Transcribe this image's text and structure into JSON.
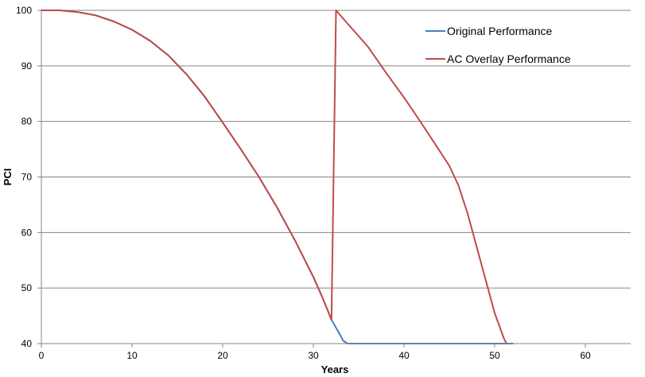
{
  "chart_data": {
    "type": "line",
    "title": "",
    "xlabel": "Years",
    "ylabel": "PCI",
    "xlim": [
      0,
      65
    ],
    "ylim": [
      40,
      100
    ],
    "x_ticks": [
      0,
      10,
      20,
      30,
      40,
      50,
      60
    ],
    "y_ticks": [
      40,
      50,
      60,
      70,
      80,
      90,
      100
    ],
    "grid": {
      "horizontal": true,
      "vertical": false
    },
    "legend": {
      "position": "top-right"
    },
    "series": [
      {
        "name": "Original Performance",
        "color": "#4a7ebb",
        "points": [
          [
            0,
            100
          ],
          [
            2,
            100
          ],
          [
            4,
            99.7
          ],
          [
            6,
            99.1
          ],
          [
            8,
            98.0
          ],
          [
            10,
            96.5
          ],
          [
            12,
            94.5
          ],
          [
            14,
            91.9
          ],
          [
            16,
            88.5
          ],
          [
            18,
            84.5
          ],
          [
            20,
            79.8
          ],
          [
            22,
            75.0
          ],
          [
            24,
            70.0
          ],
          [
            26,
            64.5
          ],
          [
            28,
            58.5
          ],
          [
            30,
            52.0
          ],
          [
            31,
            48.3
          ],
          [
            32,
            44.3
          ],
          [
            32.8,
            42.0
          ],
          [
            33.3,
            40.5
          ],
          [
            33.8,
            40
          ],
          [
            40,
            40
          ],
          [
            50,
            40
          ],
          [
            52,
            40
          ]
        ]
      },
      {
        "name": "AC Overlay Performance",
        "color": "#be4b48",
        "points": [
          [
            0,
            100
          ],
          [
            2,
            100
          ],
          [
            4,
            99.7
          ],
          [
            6,
            99.1
          ],
          [
            8,
            98.0
          ],
          [
            10,
            96.5
          ],
          [
            12,
            94.5
          ],
          [
            14,
            91.9
          ],
          [
            16,
            88.5
          ],
          [
            18,
            84.5
          ],
          [
            20,
            79.8
          ],
          [
            22,
            75.0
          ],
          [
            24,
            70.0
          ],
          [
            26,
            64.5
          ],
          [
            28,
            58.5
          ],
          [
            30,
            52.0
          ],
          [
            31,
            48.3
          ],
          [
            32,
            44.3
          ],
          [
            32.5,
            100
          ],
          [
            34,
            97.2
          ],
          [
            36,
            93.5
          ],
          [
            38,
            88.8
          ],
          [
            40,
            84.3
          ],
          [
            42,
            79.5
          ],
          [
            44,
            74.5
          ],
          [
            45,
            72.0
          ],
          [
            46,
            68.5
          ],
          [
            47,
            63.5
          ],
          [
            48,
            57.5
          ],
          [
            49,
            51.5
          ],
          [
            50,
            45.5
          ],
          [
            51,
            41.0
          ],
          [
            51.3,
            40
          ]
        ]
      }
    ]
  }
}
